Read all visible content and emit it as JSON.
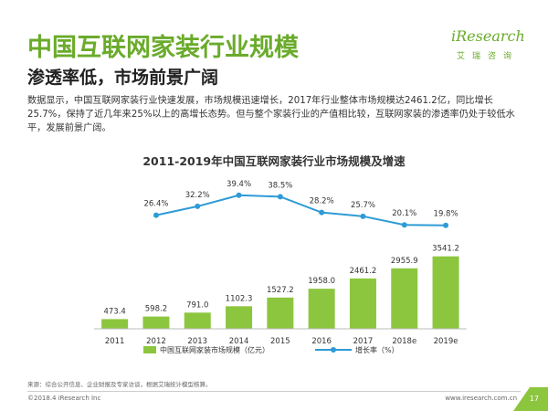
{
  "header": {
    "title": "中国互联网家装行业规模",
    "subtitle": "渗透率低，市场前景广阔",
    "description": "数据显示，中国互联网家装行业快速发展，市场规模迅速增长，2017年行业整体市场规模达2461.2亿，同比增长25.7%，保持了近几年来25%以上的高增长态势。但与整个家装行业的产值相比较，互联网家装的渗透率仍处于较低水平，发展前景广阔。"
  },
  "logo": {
    "name": "iResearch",
    "tagline": "艾瑞咨询"
  },
  "footer": {
    "source": "来源：综合公开信息、企业财报及专家访谈，根据艾瑞统计模型核算。",
    "copyright": "©2018.4 iResearch Inc",
    "website": "www.iresearch.com.cn",
    "page": "17"
  },
  "colors": {
    "bar": "#8cc63f",
    "line": "#2e9bd6",
    "title": "#6aab2b"
  },
  "chart_data": {
    "type": "bar",
    "title": "2011-2019年中国互联网家装行业市场规模及增速",
    "categories": [
      "2011",
      "2012",
      "2013",
      "2014",
      "2015",
      "2016",
      "2017",
      "2018e",
      "2019e"
    ],
    "series": [
      {
        "name": "中国互联网家装市场规模（亿元）",
        "type": "bar",
        "values": [
          473.4,
          598.2,
          791.0,
          1102.3,
          1527.2,
          1958.0,
          2461.2,
          2955.9,
          3541.2
        ],
        "labels": [
          "473.4",
          "598.2",
          "791.0",
          "1102.3",
          "1527.2",
          "1958.0",
          "2461.2",
          "2955.9",
          "3541.2"
        ]
      },
      {
        "name": "增长率（%）",
        "type": "line",
        "x": [
          "2012",
          "2013",
          "2014",
          "2015",
          "2016",
          "2017",
          "2018e",
          "2019e"
        ],
        "values": [
          26.4,
          32.2,
          39.4,
          38.5,
          28.2,
          25.7,
          20.1,
          19.8
        ],
        "labels": [
          "26.4%",
          "32.2%",
          "39.4%",
          "38.5%",
          "28.2%",
          "25.7%",
          "20.1%",
          "19.8%"
        ]
      }
    ],
    "legend_position": "bottom",
    "grid": false
  }
}
